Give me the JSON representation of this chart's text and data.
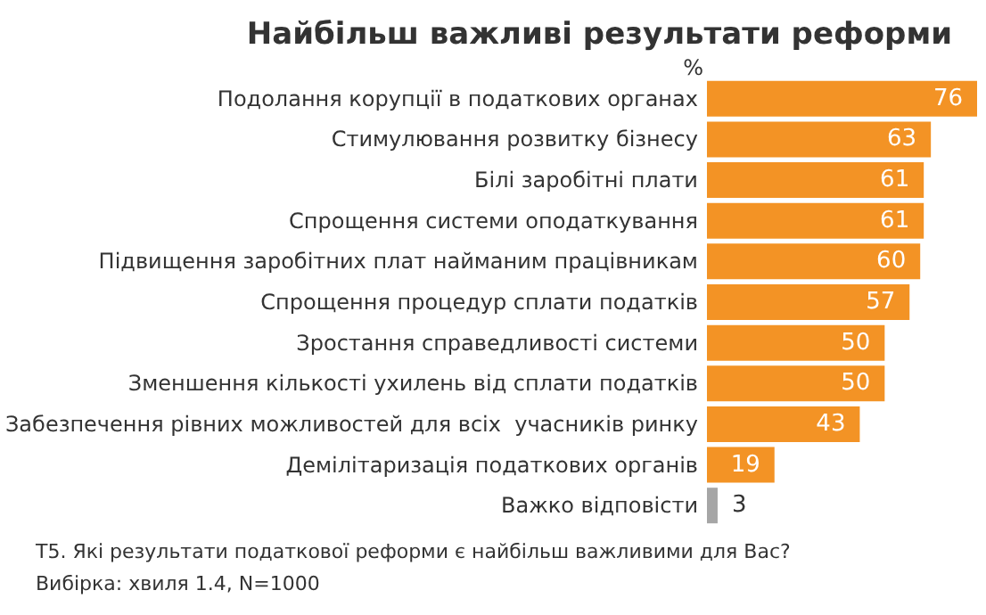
{
  "chart_data": {
    "type": "bar",
    "orientation": "horizontal",
    "title": "Найбільш важливі результати реформи",
    "xlabel": "%",
    "categories": [
      "Подолання корупції в податкових органах",
      "Стимулювання розвитку бізнесу",
      "Білі заробітні плати",
      "Спрощення системи оподаткування",
      "Підвищення заробітних плат найманим працівникам",
      "Спрощення процедур сплати податків",
      "Зростання справедливості системи",
      "Зменшення кількості ухилень від сплати податків",
      "Забезпечення рівних можливостей для всіх  учасників ринку",
      "Демілітаризація податкових органів",
      "Важко відповісти"
    ],
    "values": [
      76,
      63,
      61,
      61,
      60,
      57,
      50,
      50,
      43,
      19,
      3
    ],
    "colors": [
      "#f39325",
      "#f39325",
      "#f39325",
      "#f39325",
      "#f39325",
      "#f39325",
      "#f39325",
      "#f39325",
      "#f39325",
      "#f39325",
      "#a6a6a6"
    ],
    "xlim": [
      0,
      76
    ],
    "data_labels": true,
    "grid": false,
    "annotations": [
      "T5. Які результати податкової реформи є найбільш важливими для Вас?",
      "Вибірка: хвиля 1.4, N=1000"
    ]
  }
}
